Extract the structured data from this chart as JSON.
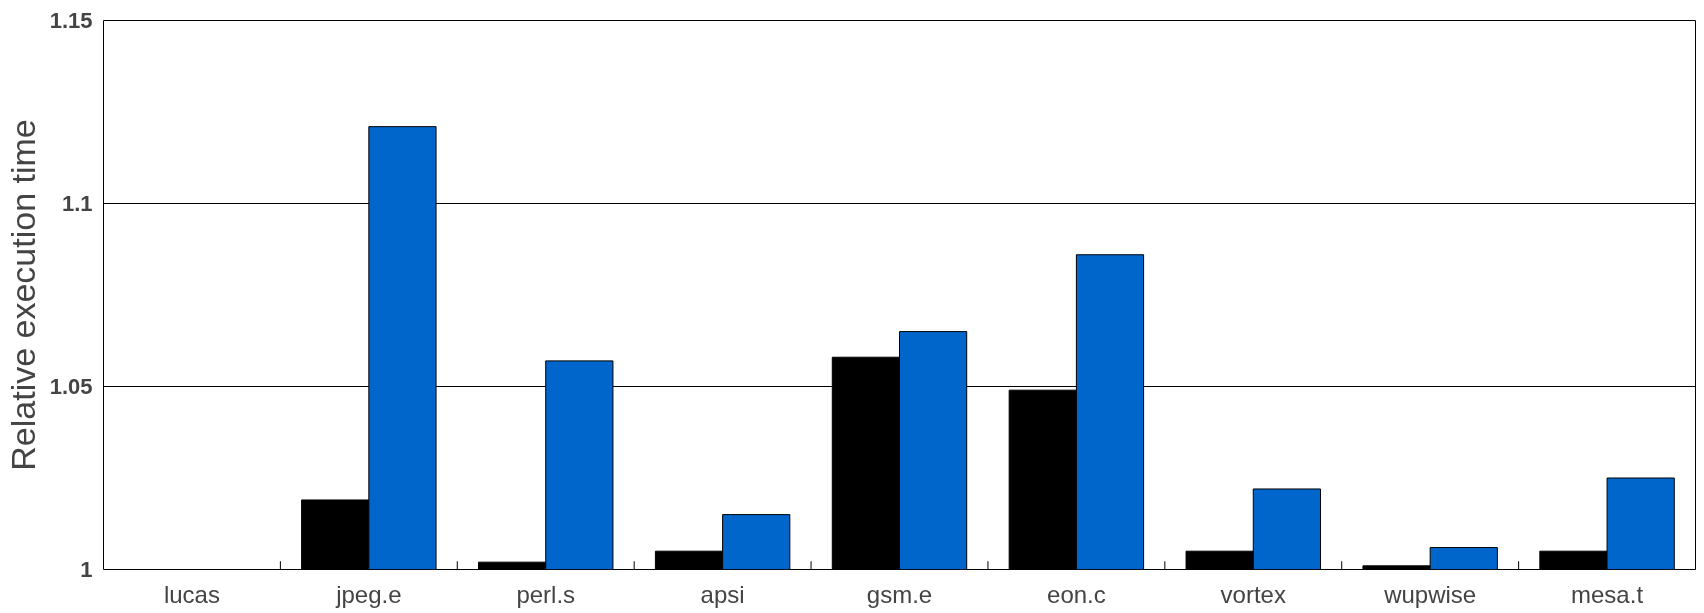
{
  "chart_data": {
    "type": "bar",
    "ylabel": "Relative execution time",
    "categories": [
      "lucas",
      "jpeg.e",
      "perl.s",
      "apsi",
      "gsm.e",
      "eon.c",
      "vortex",
      "wupwise",
      "mesa.t"
    ],
    "series": [
      {
        "color": "#000000",
        "values": [
          null,
          1.019,
          1.002,
          1.005,
          1.058,
          1.049,
          1.005,
          1.001,
          1.005
        ]
      },
      {
        "color": "#0066cc",
        "values": [
          null,
          1.121,
          1.057,
          1.015,
          1.065,
          1.086,
          1.022,
          1.006,
          1.025
        ]
      }
    ],
    "ylim": [
      1,
      1.15
    ],
    "yticks": [
      1,
      1.05,
      1.1,
      1.15
    ],
    "grid": "y"
  }
}
